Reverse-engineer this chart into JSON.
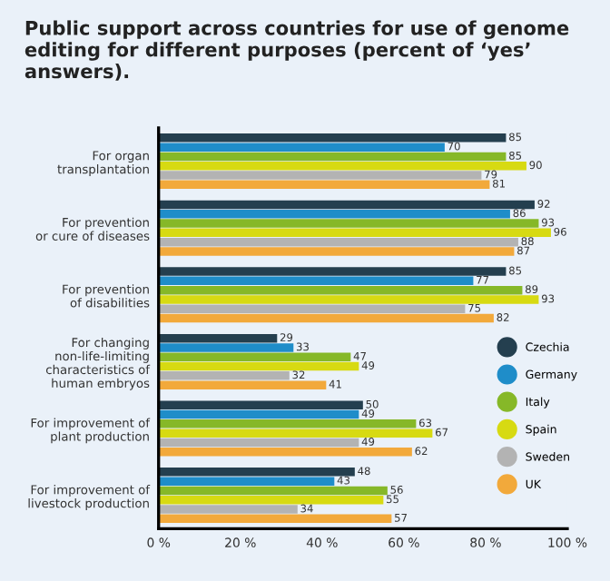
{
  "chart_data": {
    "type": "bar",
    "orientation": "horizontal",
    "title": "Public support across countries for use of genome editing for different purposes (percent of ‘yes’ answers).",
    "categories": [
      "For organ\ntransplantation",
      "For prevention\nor cure of diseases",
      "For prevention\nof disabilities",
      "For changing\nnon-life-limiting\ncharacteristics of\nhuman embryos",
      "For improvement of\nplant production",
      "For improvement of\nlivestock production"
    ],
    "series": [
      {
        "name": "Czechia",
        "color": "#243f4f",
        "values": [
          85,
          92,
          85,
          29,
          50,
          48
        ]
      },
      {
        "name": "Germany",
        "color": "#1f8dc9",
        "values": [
          70,
          86,
          77,
          33,
          49,
          43
        ]
      },
      {
        "name": "Italy",
        "color": "#86b828",
        "values": [
          85,
          93,
          89,
          47,
          63,
          56
        ]
      },
      {
        "name": "Spain",
        "color": "#d7da12",
        "values": [
          90,
          96,
          93,
          49,
          67,
          55
        ]
      },
      {
        "name": "Sweden",
        "color": "#b3b3b3",
        "values": [
          79,
          88,
          75,
          32,
          49,
          34
        ]
      },
      {
        "name": "UK",
        "color": "#f2a93b",
        "values": [
          81,
          87,
          82,
          41,
          62,
          57
        ]
      }
    ],
    "xlim": [
      0,
      100
    ],
    "xticks": [
      {
        "value": 0,
        "label": "0 %"
      },
      {
        "value": 20,
        "label": "20 %"
      },
      {
        "value": 40,
        "label": "40 %"
      },
      {
        "value": 60,
        "label": "60 %"
      },
      {
        "value": 80,
        "label": "80 %"
      },
      {
        "value": 100,
        "label": "100 %"
      }
    ],
    "data_labels": true,
    "legend": "right",
    "grid": false
  }
}
